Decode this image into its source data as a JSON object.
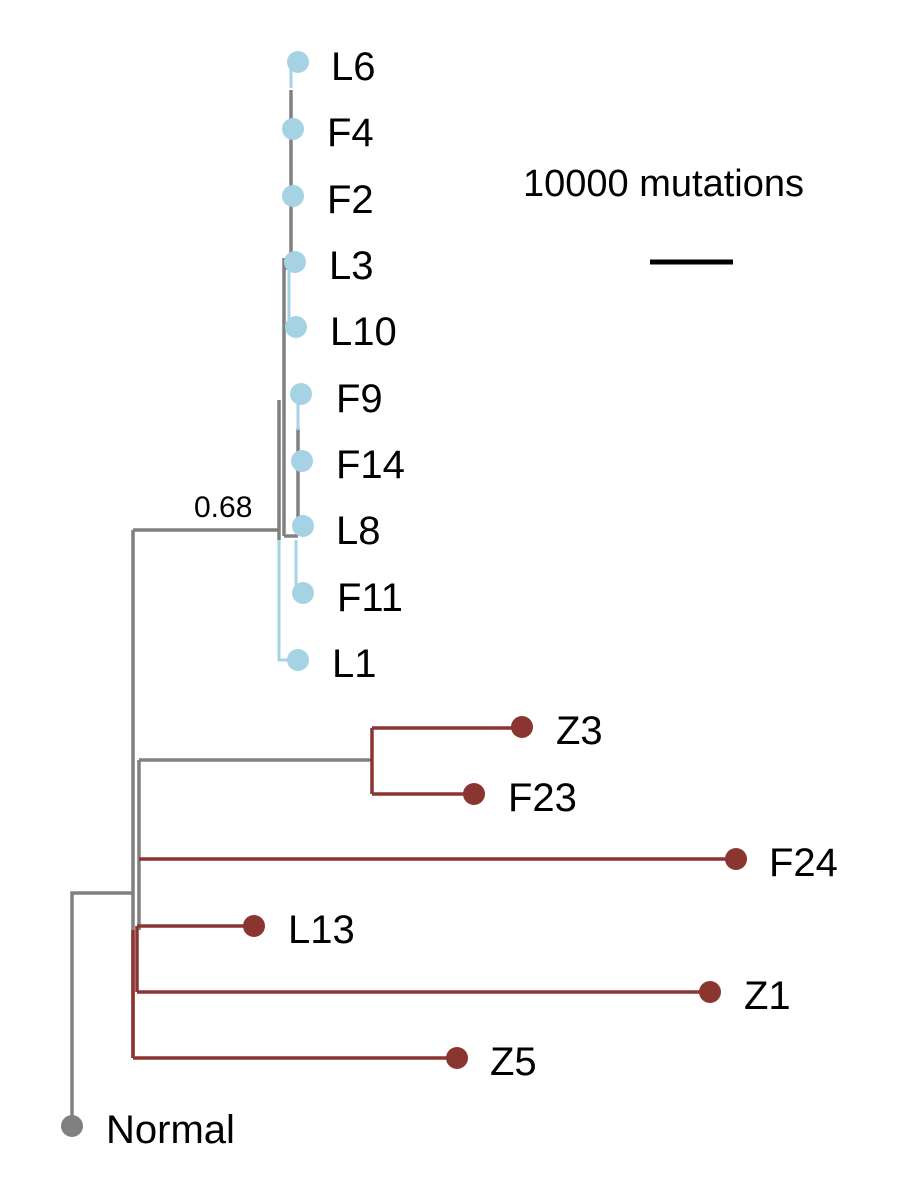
{
  "colors": {
    "trunk": "#808080",
    "blue_clade": "#a6d3e3",
    "red_clade": "#8b3530",
    "normal": "#808080",
    "scale_bar": "#000000"
  },
  "scale_bar": {
    "label": "10000 mutations"
  },
  "support_value": "0.68",
  "leaves": [
    {
      "id": "L6",
      "label": "L6",
      "clade": "blue"
    },
    {
      "id": "F4",
      "label": "F4",
      "clade": "blue"
    },
    {
      "id": "F2",
      "label": "F2",
      "clade": "blue"
    },
    {
      "id": "L3",
      "label": "L3",
      "clade": "blue"
    },
    {
      "id": "L10",
      "label": "L10",
      "clade": "blue"
    },
    {
      "id": "F9",
      "label": "F9",
      "clade": "blue"
    },
    {
      "id": "F14",
      "label": "F14",
      "clade": "blue"
    },
    {
      "id": "L8",
      "label": "L8",
      "clade": "blue"
    },
    {
      "id": "F11",
      "label": "F11",
      "clade": "blue"
    },
    {
      "id": "L1",
      "label": "L1",
      "clade": "blue"
    },
    {
      "id": "Z3",
      "label": "Z3",
      "clade": "red"
    },
    {
      "id": "F23",
      "label": "F23",
      "clade": "red"
    },
    {
      "id": "F24",
      "label": "F24",
      "clade": "red"
    },
    {
      "id": "L13",
      "label": "L13",
      "clade": "red"
    },
    {
      "id": "Z1",
      "label": "Z1",
      "clade": "red"
    },
    {
      "id": "Z5",
      "label": "Z5",
      "clade": "red"
    },
    {
      "id": "Normal",
      "label": "Normal",
      "clade": "normal"
    }
  ]
}
